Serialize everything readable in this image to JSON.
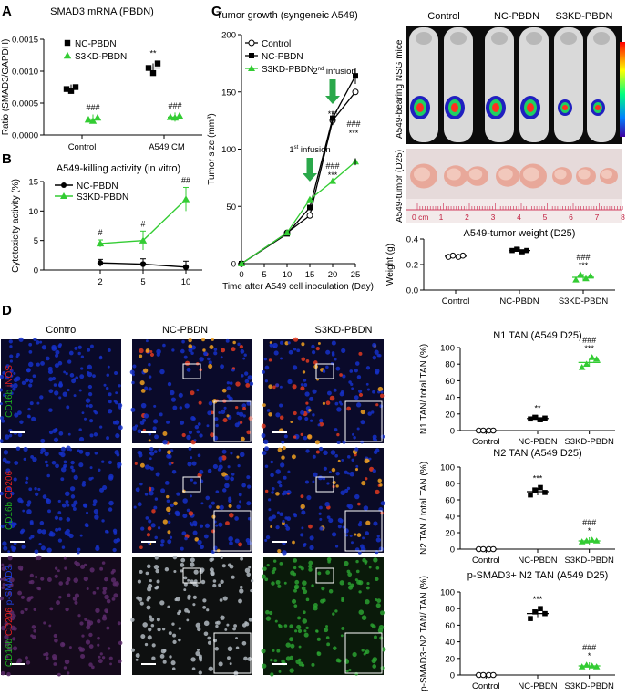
{
  "panels": {
    "A": "A",
    "B": "B",
    "C": "C",
    "D": "D"
  },
  "colors": {
    "nc": "#000000",
    "s3kd": "#33cc33",
    "ctrl_marker": "#ffffff",
    "dapi": "#1530c8",
    "scalebar": "#ffffff"
  },
  "photo": {
    "mice_labels": [
      "Control",
      "NC-PBDN",
      "S3KD-PBDN"
    ],
    "mice_side": "A549-bearing NSG mice",
    "tumor_side": "A549-tumor (D25)",
    "ruler_unit": "0 cm",
    "ruler_numbers": [
      "1",
      "2",
      "3",
      "4",
      "5",
      "6",
      "7",
      "8"
    ]
  },
  "micro": {
    "columns": [
      "Control",
      "NC-PBDN",
      "S3KD-PBDN"
    ],
    "rows": [
      {
        "parts": [
          {
            "t": "CD16b",
            "c": "#1fae1f"
          },
          {
            "t": " iNOS",
            "c": "#e02020"
          }
        ]
      },
      {
        "parts": [
          {
            "t": "CD16b",
            "c": "#1fae1f"
          },
          {
            "t": " CD206",
            "c": "#e02020"
          }
        ]
      },
      {
        "parts": [
          {
            "t": "CD16b",
            "c": "#1fae1f"
          },
          {
            "t": " CD206",
            "c": "#e02020"
          },
          {
            "t": " p-SMAD3",
            "c": "#2040e0"
          }
        ]
      }
    ]
  },
  "chart_data": [
    {
      "id": "A",
      "type": "scatter",
      "title": "SMAD3 mRNA (PBDN)",
      "ylabel": "Ratio (SMAD3/GAPDH)",
      "ylim": [
        0,
        0.0015
      ],
      "yticks": [
        "0.0000",
        "0.0005",
        "0.0010",
        "0.0015"
      ],
      "categories": [
        "Control",
        "A549 CM"
      ],
      "legend": [
        "NC-PBDN",
        "S3KD-PBDN"
      ],
      "series": [
        {
          "name": "NC-PBDN",
          "marker": "square",
          "values": [
            [
              0.00072,
              0.00075,
              0.00069
            ],
            [
              0.00105,
              0.00112,
              0.00097
            ]
          ],
          "means": [
            0.00072,
            0.00105
          ],
          "sig": [
            "",
            "**"
          ]
        },
        {
          "name": "S3KD-PBDN",
          "marker": "triangle",
          "values": [
            [
              0.00024,
              0.00027,
              0.00022
            ],
            [
              0.00028,
              0.0003,
              0.00027
            ]
          ],
          "means": [
            0.00025,
            0.00028
          ],
          "sig": [
            "###",
            "###"
          ]
        }
      ]
    },
    {
      "id": "B",
      "type": "line",
      "title": "A549-killing activity (in vitro)",
      "ylabel": "Cytotoxicity activity (%)",
      "ylim": [
        0,
        15
      ],
      "yticks": [
        "0",
        "5",
        "10",
        "15"
      ],
      "x": [
        "2",
        "5",
        "10"
      ],
      "legend": [
        "NC-PBDN",
        "S3KD-PBDN"
      ],
      "series": [
        {
          "name": "NC-PBDN",
          "marker": "circle",
          "values": [
            1.2,
            1.0,
            0.5
          ],
          "err": [
            0.6,
            0.9,
            1.0
          ],
          "sig": [
            "",
            "",
            ""
          ]
        },
        {
          "name": "S3KD-PBDN",
          "marker": "triangle",
          "values": [
            4.5,
            5.0,
            12.0
          ],
          "err": [
            0.6,
            1.6,
            2.0
          ],
          "sig": [
            "#",
            "#",
            "##"
          ]
        }
      ]
    },
    {
      "id": "C1",
      "type": "line",
      "title": "Tumor growth (syngeneic A549)",
      "xlabel": "Time after A549 cell inoculation (Day)",
      "ylabel": "Tumor size (mm³)",
      "xlim": [
        0,
        25
      ],
      "ylim": [
        0,
        200
      ],
      "xticks": [
        "0",
        "5",
        "10",
        "15",
        "20",
        "25"
      ],
      "yticks": [
        "0",
        "50",
        "100",
        "150",
        "200"
      ],
      "x": [
        0,
        10,
        15,
        20,
        25
      ],
      "legend": [
        "Control",
        "NC-PBDN",
        "S3KD-PBDN"
      ],
      "annotations": [
        {
          "sup": "st",
          "text": "1",
          "rest": " infusion"
        },
        {
          "sup": "nd",
          "text": "2",
          "rest": " infusion"
        }
      ],
      "series": [
        {
          "name": "Control",
          "marker": "circle-open",
          "values": [
            0,
            27,
            42,
            125,
            150
          ]
        },
        {
          "name": "NC-PBDN",
          "marker": "square",
          "values": [
            0,
            26,
            49,
            127,
            164
          ]
        },
        {
          "name": "S3KD-PBDN",
          "marker": "triangle",
          "values": [
            0,
            27,
            56,
            72,
            89
          ]
        }
      ],
      "sig_day20": [
        "###",
        "***"
      ],
      "sig_day25": [
        "###",
        "***"
      ]
    },
    {
      "id": "C2",
      "type": "scatter",
      "title": "A549-tumor weight (D25)",
      "ylabel": "Weight (g)",
      "ylim": [
        0,
        0.4
      ],
      "yticks": [
        "0.0",
        "0.2",
        "0.4"
      ],
      "categories": [
        "Control",
        "NC-PBDN",
        "S3KD-PBDN"
      ],
      "points": [
        [
          0.26,
          0.27,
          0.26,
          0.27
        ],
        [
          0.31,
          0.32,
          0.3,
          0.31
        ],
        [
          0.08,
          0.12,
          0.09,
          0.11
        ]
      ],
      "means": [
        0.265,
        0.31,
        0.1
      ],
      "sig": [
        [
          ""
        ],
        [
          ""
        ],
        [
          "###",
          "***"
        ]
      ]
    },
    {
      "id": "D1",
      "type": "scatter",
      "title": "N1 TAN (A549 D25)",
      "ylabel": "N1 TAN/ total TAN (%)",
      "ylim": [
        0,
        100
      ],
      "yticks": [
        "0",
        "20",
        "40",
        "60",
        "80",
        "100"
      ],
      "categories": [
        "Control",
        "NC-PBDN",
        "S3KD-PBDN"
      ],
      "points": [
        [
          0,
          0,
          0,
          0
        ],
        [
          14,
          16,
          13,
          15
        ],
        [
          76,
          80,
          88,
          86
        ]
      ],
      "means": [
        0,
        14.5,
        82
      ],
      "sig": [
        [
          ""
        ],
        [
          "**"
        ],
        [
          "###",
          "***"
        ]
      ]
    },
    {
      "id": "D2",
      "type": "scatter",
      "title": "N2 TAN (A549 D25)",
      "ylabel": "N2 TAN / total TAN (%)",
      "ylim": [
        0,
        100
      ],
      "yticks": [
        "0",
        "20",
        "40",
        "60",
        "80",
        "100"
      ],
      "categories": [
        "Control",
        "NC-PBDN",
        "S3KD-PBDN"
      ],
      "points": [
        [
          0,
          0,
          0,
          0
        ],
        [
          66,
          72,
          75,
          69
        ],
        [
          9,
          10,
          11,
          10
        ]
      ],
      "means": [
        0,
        70,
        10
      ],
      "sig": [
        [
          ""
        ],
        [
          "***"
        ],
        [
          "###",
          "*"
        ]
      ]
    },
    {
      "id": "D3",
      "type": "scatter",
      "title": "p-SMAD3+ N2 TAN (A549 D25)",
      "ylabel": "p-SMAD3+N2 TAN/ TAN (%)",
      "ylim": [
        0,
        100
      ],
      "yticks": [
        "0",
        "20",
        "40",
        "60",
        "80",
        "100"
      ],
      "categories": [
        "Control",
        "NC-PBDN",
        "S3KD-PBDN"
      ],
      "points": [
        [
          0,
          0,
          0,
          0
        ],
        [
          68,
          76,
          80,
          74
        ],
        [
          10,
          12,
          11,
          10
        ]
      ],
      "means": [
        0,
        74,
        11
      ],
      "sig": [
        [
          ""
        ],
        [
          "***"
        ],
        [
          "###",
          "*"
        ]
      ]
    }
  ]
}
